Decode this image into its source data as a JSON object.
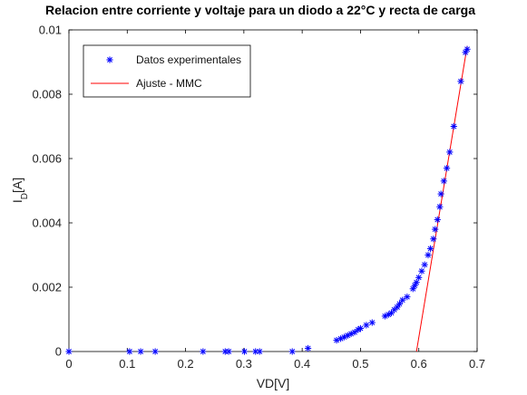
{
  "chart_data": {
    "type": "scatter",
    "title": "Relacion entre corriente y voltaje para un diodo a 22°C y recta de carga",
    "xlabel": "VD[V]",
    "ylabel": {
      "main": "I",
      "sub": "D",
      "rest": "[A]"
    },
    "xlim": [
      0,
      0.7
    ],
    "ylim": [
      0,
      0.01
    ],
    "xticks": [
      0,
      0.1,
      0.2,
      0.3,
      0.4,
      0.5,
      0.6,
      0.7
    ],
    "xtick_labels": [
      "0",
      "0.1",
      "0.2",
      "0.3",
      "0.4",
      "0.5",
      "0.6",
      "0.7"
    ],
    "yticks": [
      0,
      0.002,
      0.004,
      0.006,
      0.008,
      0.01
    ],
    "ytick_labels": [
      "0",
      "0.002",
      "0.004",
      "0.006",
      "0.008",
      "0.01"
    ],
    "grid": false,
    "legend_position": "top-left",
    "series": [
      {
        "name": "Datos experimentales",
        "kind": "scatter",
        "marker": "asterisk",
        "color": "#0000ff",
        "points": [
          [
            0.0,
            0.0
          ],
          [
            0.104,
            0.0
          ],
          [
            0.123,
            0.0
          ],
          [
            0.148,
            0.0
          ],
          [
            0.23,
            0.0
          ],
          [
            0.268,
            0.0
          ],
          [
            0.274,
            0.0
          ],
          [
            0.301,
            0.0
          ],
          [
            0.32,
            0.0
          ],
          [
            0.327,
            0.0
          ],
          [
            0.383,
            0.0
          ],
          [
            0.41,
            0.0001
          ],
          [
            0.459,
            0.00035
          ],
          [
            0.466,
            0.0004
          ],
          [
            0.472,
            0.00045
          ],
          [
            0.478,
            0.0005
          ],
          [
            0.484,
            0.00055
          ],
          [
            0.49,
            0.0006
          ],
          [
            0.496,
            0.00068
          ],
          [
            0.5,
            0.00072
          ],
          [
            0.51,
            0.00082
          ],
          [
            0.52,
            0.0009
          ],
          [
            0.542,
            0.0011
          ],
          [
            0.548,
            0.00115
          ],
          [
            0.553,
            0.0012
          ],
          [
            0.558,
            0.0013
          ],
          [
            0.563,
            0.00138
          ],
          [
            0.567,
            0.00148
          ],
          [
            0.572,
            0.0016
          ],
          [
            0.58,
            0.0017
          ],
          [
            0.59,
            0.00195
          ],
          [
            0.593,
            0.00205
          ],
          [
            0.596,
            0.00215
          ],
          [
            0.6,
            0.0023
          ],
          [
            0.605,
            0.0025
          ],
          [
            0.61,
            0.0027
          ],
          [
            0.616,
            0.003
          ],
          [
            0.62,
            0.0032
          ],
          [
            0.625,
            0.0035
          ],
          [
            0.628,
            0.0038
          ],
          [
            0.632,
            0.0041
          ],
          [
            0.636,
            0.0045
          ],
          [
            0.638,
            0.0049
          ],
          [
            0.643,
            0.0053
          ],
          [
            0.648,
            0.0057
          ],
          [
            0.653,
            0.0062
          ],
          [
            0.66,
            0.007
          ],
          [
            0.672,
            0.0084
          ],
          [
            0.68,
            0.0093
          ],
          [
            0.683,
            0.0094
          ]
        ]
      },
      {
        "name": "Ajuste - MMC",
        "kind": "line",
        "color": "#ff0000",
        "points": [
          [
            0.596,
            0.0
          ],
          [
            0.683,
            0.0095
          ]
        ]
      }
    ]
  }
}
